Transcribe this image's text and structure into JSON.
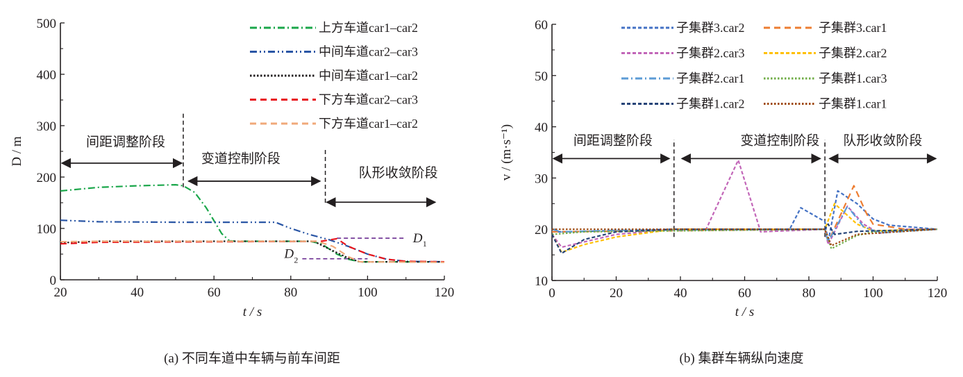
{
  "chart_data": [
    {
      "type": "line",
      "title": "",
      "caption": "(a)  不同车道中车辆与前车间距",
      "xlabel": "t / s",
      "ylabel": "D / m",
      "xlim": [
        20,
        120
      ],
      "ylim": [
        0,
        500
      ],
      "xticks": [
        20,
        40,
        60,
        80,
        100,
        120
      ],
      "yticks": [
        0,
        100,
        200,
        300,
        400,
        500
      ],
      "legend_position": "top-right",
      "series": [
        {
          "name": "上方车道car1–car2",
          "color": "#1aa64a",
          "style": "dashdot",
          "x": [
            20,
            30,
            40,
            50,
            52,
            55,
            58,
            62,
            64,
            66,
            70,
            85,
            88,
            92,
            95,
            98,
            120
          ],
          "y": [
            173,
            180,
            183,
            185,
            183,
            170,
            140,
            90,
            76,
            75,
            75,
            75,
            70,
            50,
            40,
            35,
            35
          ]
        },
        {
          "name": "中间车道car2–car3",
          "color": "#2a56a5",
          "style": "dashdotdot",
          "x": [
            20,
            30,
            50,
            76,
            80,
            85,
            90,
            95,
            100,
            105,
            110,
            120
          ],
          "y": [
            116,
            113,
            112,
            112,
            100,
            88,
            78,
            65,
            50,
            40,
            36,
            35
          ]
        },
        {
          "name": "中间车道car1–car2",
          "color": "#231f20",
          "style": "dotted",
          "x": [
            20,
            30,
            86,
            90,
            95,
            98,
            120
          ],
          "y": [
            72,
            75,
            75,
            60,
            42,
            35,
            35
          ]
        },
        {
          "name": "下方车道car2–car3",
          "color": "#e8141b",
          "style": "dash",
          "x": [
            20,
            30,
            88,
            92,
            95,
            100,
            105,
            110,
            120
          ],
          "y": [
            70,
            73,
            75,
            80,
            65,
            50,
            40,
            36,
            35
          ]
        },
        {
          "name": "下方车道car1–car2",
          "color": "#f0a97a",
          "style": "dash",
          "x": [
            20,
            30,
            87,
            91,
            95,
            98,
            120
          ],
          "y": [
            74,
            75,
            75,
            65,
            45,
            35,
            34
          ]
        }
      ],
      "annotations": {
        "phases": [
          "间距调整阶段",
          "变道控制阶段",
          "队形收敛阶段"
        ],
        "phase_boundaries": [
          52,
          89
        ],
        "D1": {
          "label": "D",
          "sub": "1",
          "value": 81,
          "x_range": [
            92,
            110
          ]
        },
        "D2": {
          "label": "D",
          "sub": "2",
          "value": 41,
          "x_range": [
            83,
            100
          ]
        }
      }
    },
    {
      "type": "line",
      "title": "",
      "caption": "(b)  集群车辆纵向速度",
      "xlabel": "t / s",
      "ylabel": "v / (m·s⁻¹)",
      "xlim": [
        0,
        120
      ],
      "ylim": [
        10,
        60
      ],
      "xticks": [
        0,
        20,
        40,
        60,
        80,
        100,
        120
      ],
      "yticks": [
        10,
        20,
        30,
        40,
        50,
        60
      ],
      "legend_position": "top-right",
      "series": [
        {
          "name": "子集群3.car2",
          "color": "#4472c4",
          "style": "shortdash",
          "x": [
            0,
            5,
            38,
            74,
            77.5,
            85,
            86,
            89,
            95,
            100,
            105,
            120
          ],
          "y": [
            19.5,
            19.5,
            20,
            20,
            24.2,
            21.5,
            17.5,
            27.5,
            25,
            22,
            20.8,
            20
          ]
        },
        {
          "name": "子集群3.car1",
          "color": "#ed7d31",
          "style": "dash",
          "x": [
            0,
            85,
            86,
            90,
            94,
            98,
            100,
            110,
            120
          ],
          "y": [
            19.5,
            20,
            17.5,
            23,
            28.5,
            23,
            21,
            20,
            20
          ]
        },
        {
          "name": "子集群2.car3",
          "color": "#c266b8",
          "style": "shortdash",
          "x": [
            0,
            3,
            20,
            38,
            48,
            58,
            65,
            85,
            86,
            92,
            97,
            102,
            110,
            120
          ],
          "y": [
            19,
            16.5,
            19,
            20,
            20,
            33.5,
            19.5,
            20,
            17,
            24.5,
            21,
            19.2,
            20,
            20
          ]
        },
        {
          "name": "子集群2.car2",
          "color": "#ffc000",
          "style": "shortdash",
          "x": [
            0,
            3,
            10,
            20,
            38,
            85,
            88,
            95,
            100,
            120
          ],
          "y": [
            19,
            15.5,
            17,
            18.5,
            20,
            20,
            25,
            21,
            19.7,
            20
          ]
        },
        {
          "name": "子集群2.car1",
          "color": "#5b9bd5",
          "style": "dashdot",
          "x": [
            0,
            3,
            20,
            85,
            86,
            92,
            97,
            102,
            120
          ],
          "y": [
            20,
            19.5,
            19.8,
            20,
            17.5,
            24.5,
            20.5,
            19.3,
            20
          ]
        },
        {
          "name": "子集群1.car3",
          "color": "#70ad47",
          "style": "dotted",
          "x": [
            0,
            10,
            85,
            87,
            95,
            100,
            120
          ],
          "y": [
            19,
            19.5,
            20,
            16.2,
            18.8,
            19.5,
            20
          ]
        },
        {
          "name": "子集群1.car2",
          "color": "#264478",
          "style": "shortdash",
          "x": [
            0,
            3,
            10,
            20,
            38,
            85,
            86,
            88,
            95,
            120
          ],
          "y": [
            19,
            15.3,
            18,
            19.5,
            20,
            20,
            21,
            19,
            19.6,
            20
          ]
        },
        {
          "name": "子集群1.car1",
          "color": "#9e480e",
          "style": "dotted",
          "x": [
            0,
            85,
            87,
            95,
            120
          ],
          "y": [
            20,
            20,
            16.8,
            19,
            20
          ]
        }
      ],
      "annotations": {
        "phases": [
          "间距调整阶段",
          "变道控制阶段",
          "队形收敛阶段"
        ],
        "phase_boundaries": [
          38,
          85
        ]
      }
    }
  ]
}
